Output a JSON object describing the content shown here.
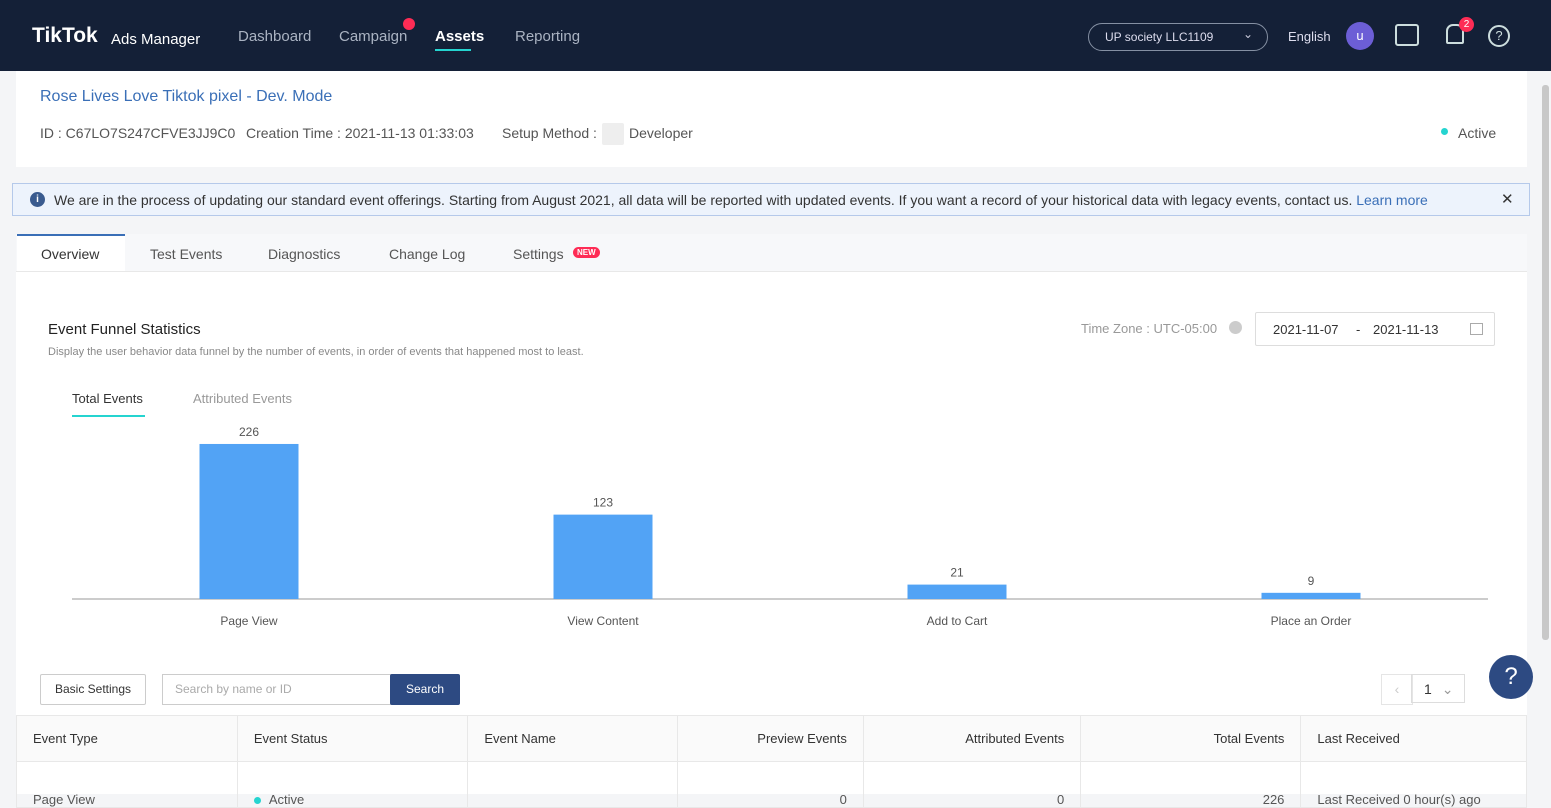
{
  "nav": {
    "logo": "TikTok",
    "product": "Ads Manager",
    "menu": [
      "Dashboard",
      "Campaign",
      "Assets",
      "Reporting"
    ],
    "account": "UP society LLC1109",
    "language": "English",
    "avatar": "u",
    "notifications": "2"
  },
  "pixel": {
    "title": "Rose Lives Love Tiktok pixel - Dev. Mode",
    "id": "ID : C67LO7S247CFVE3JJ9C0",
    "creation_time": "Creation Time : 2021-11-13 01:33:03",
    "setup_label": "Setup Method :",
    "setup_method": "Developer",
    "status": "Active"
  },
  "notice": {
    "text": "We are in the process of updating our standard event offerings. Starting from August 2021, all data will be reported with updated events. If you want a record of your historical data with legacy events, contact us.",
    "link": "Learn more"
  },
  "tabs": {
    "items": [
      "Overview",
      "Test Events",
      "Diagnostics",
      "Change Log",
      "Settings"
    ],
    "badge": "NEW"
  },
  "funnel": {
    "title": "Event Funnel Statistics",
    "description": "Display the user behavior data funnel by the number of events, in order of events that happened most to least.",
    "timezone": "Time Zone : UTC-05:00",
    "date_start": "2021-11-07",
    "date_separator": "-",
    "date_end": "2021-11-13",
    "subtabs": [
      "Total Events",
      "Attributed Events"
    ]
  },
  "chart_data": {
    "type": "bar",
    "categories": [
      "Page View",
      "View Content",
      "Add to Cart",
      "Place an Order"
    ],
    "values": [
      226,
      123,
      21,
      9
    ],
    "color": "#52a3f5"
  },
  "toolbar": {
    "settings": "Basic Settings",
    "search_placeholder": "Search by name or ID",
    "search_button": "Search",
    "page": "1"
  },
  "table": {
    "headers": [
      "Event Type",
      "Event Status",
      "Event Name",
      "Preview Events",
      "Attributed Events",
      "Total Events",
      "Last Received"
    ],
    "rows": [
      [
        "Page View",
        "Active",
        "",
        0,
        0,
        226,
        "Last Received 0 hour(s) ago"
      ]
    ]
  }
}
